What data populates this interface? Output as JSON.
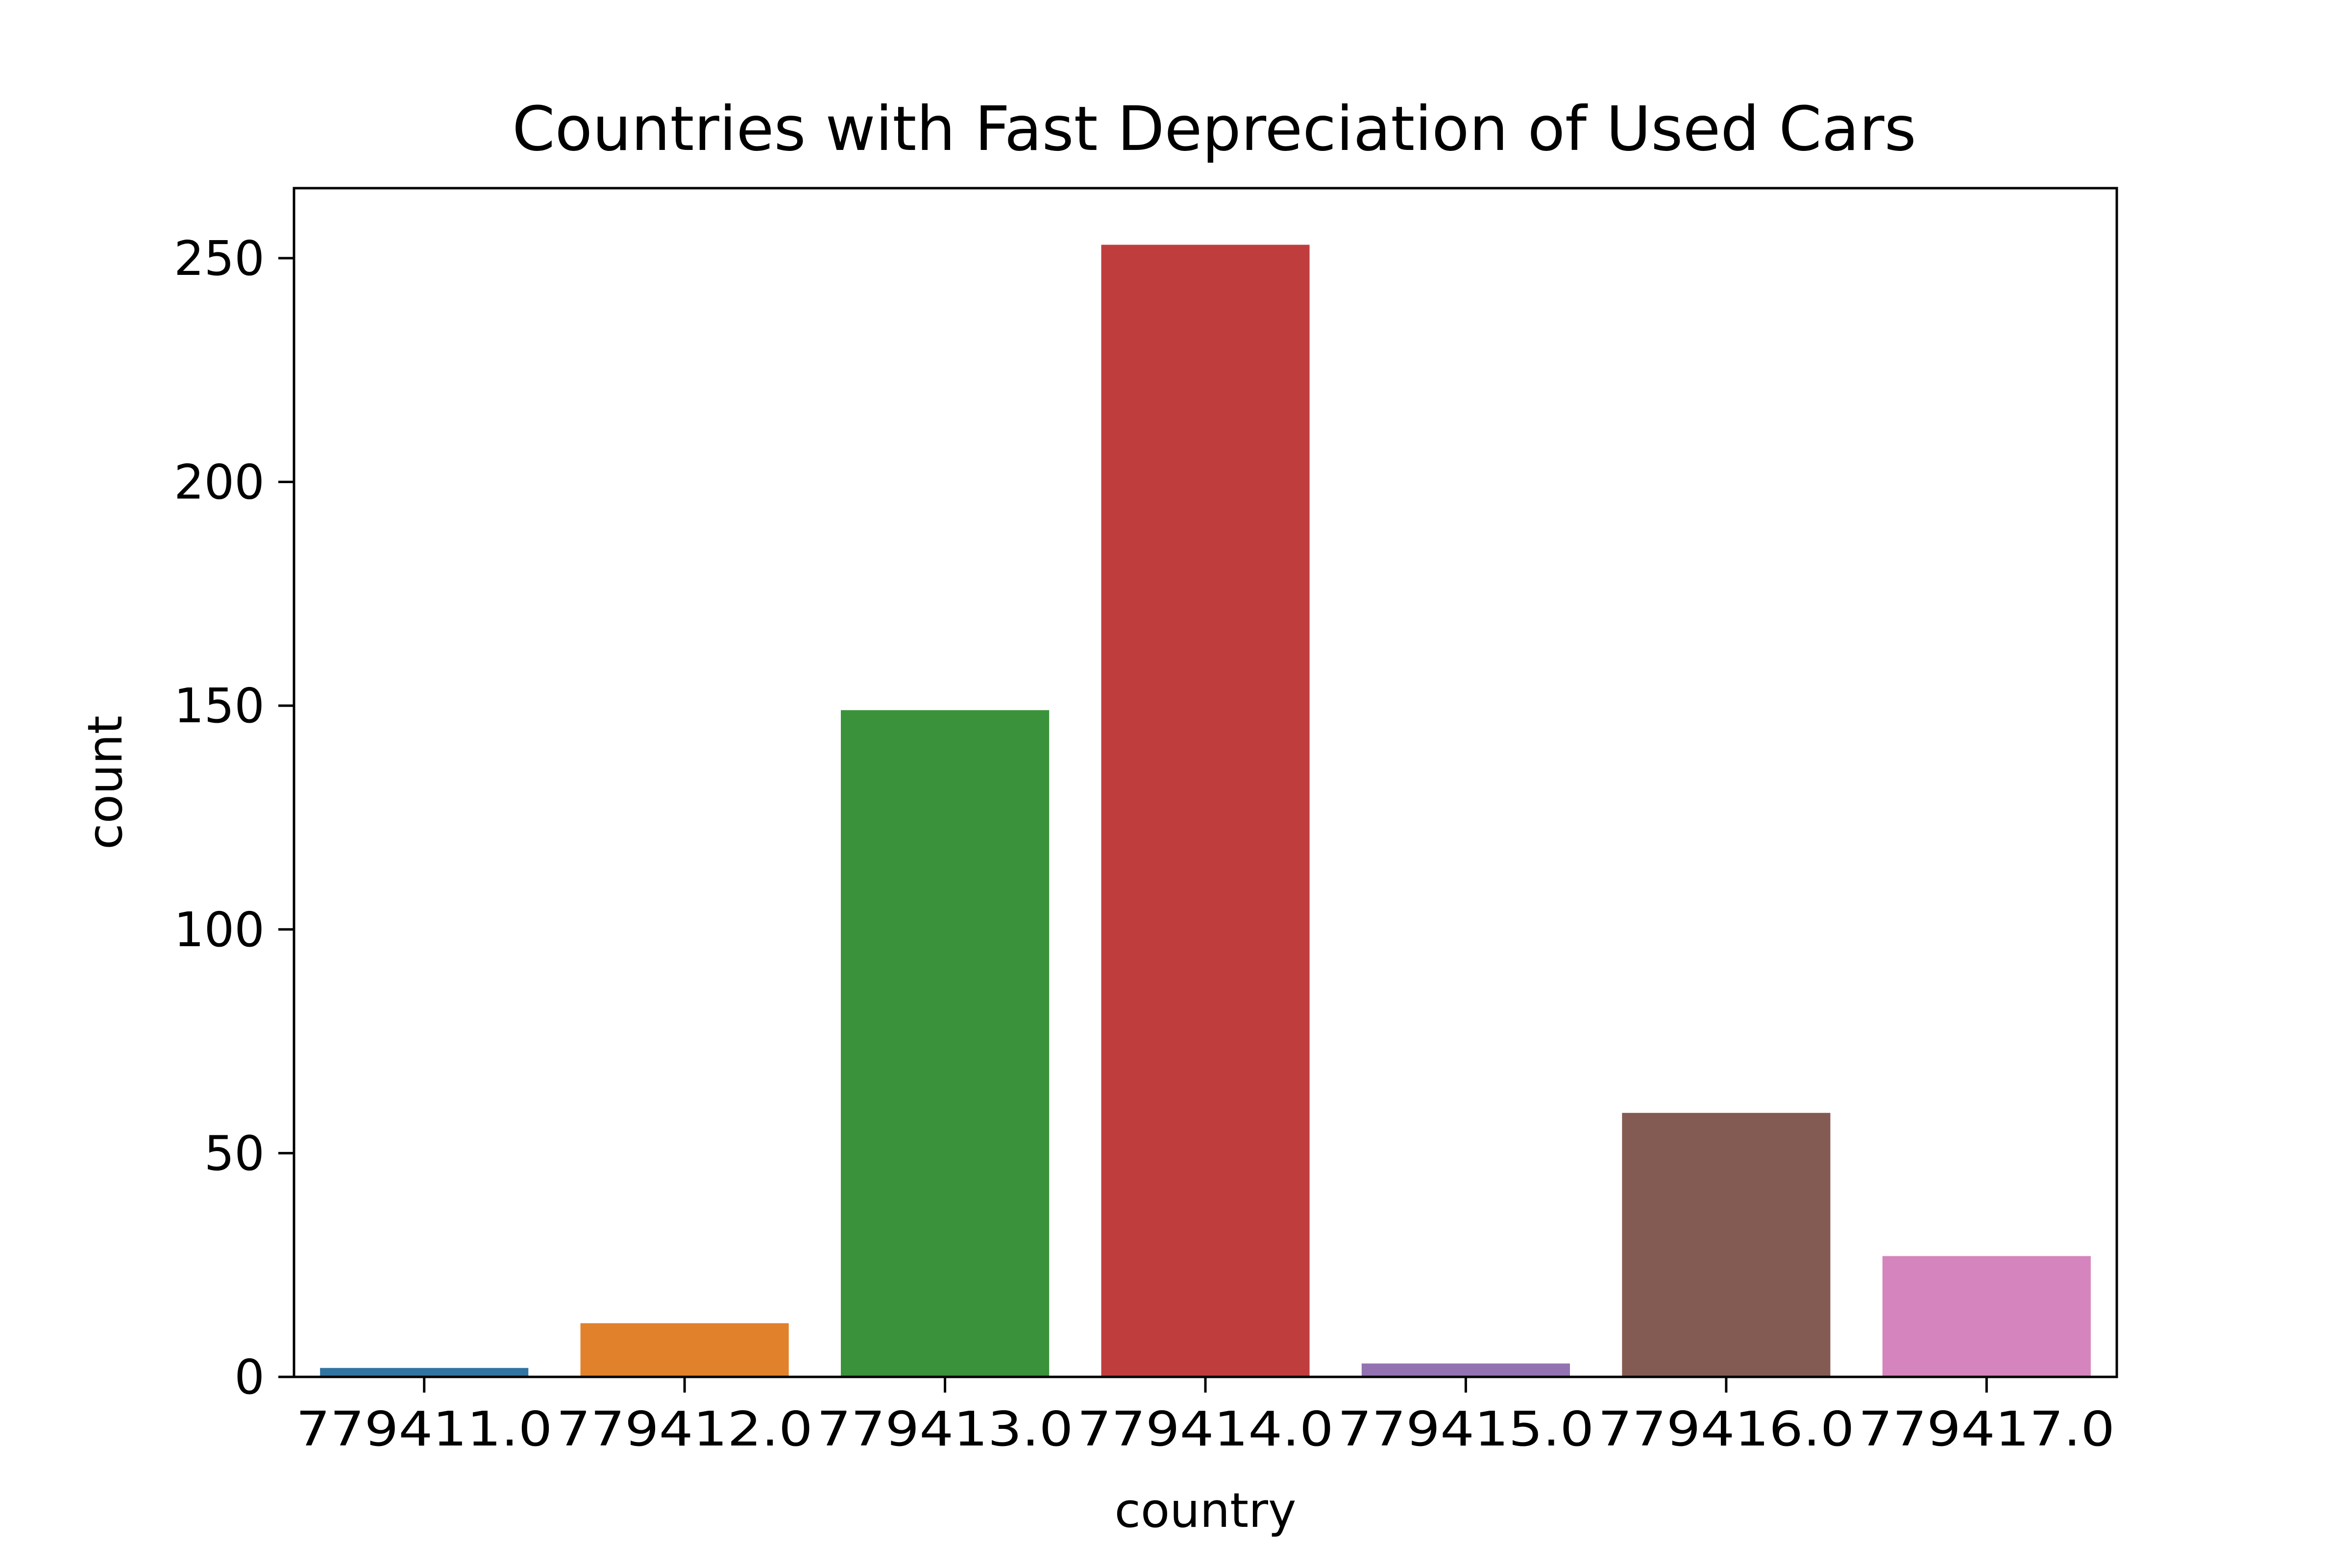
{
  "chart_data": {
    "type": "bar",
    "title": "Countries with Fast Depreciation of Used Cars",
    "xlabel": "country",
    "ylabel": "count",
    "categories": [
      "779411.0",
      "779412.0",
      "779413.0",
      "779414.0",
      "779415.0",
      "779416.0",
      "779417.0"
    ],
    "values": [
      2,
      12,
      149,
      253,
      3,
      59,
      27
    ],
    "colors": [
      "#3274a1",
      "#e1812c",
      "#3a923a",
      "#c03d3e",
      "#9372b2",
      "#845b53",
      "#d684bd"
    ],
    "ylim": [
      0,
      265.65
    ],
    "yticks": [
      0,
      50,
      100,
      150,
      200,
      250
    ],
    "grid": false,
    "legend": "none"
  }
}
